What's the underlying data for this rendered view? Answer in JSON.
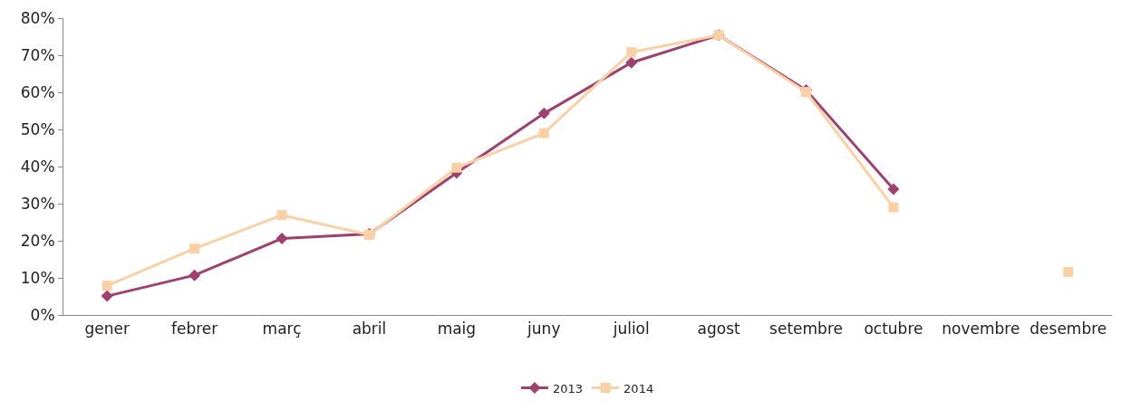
{
  "chart_data": {
    "type": "line",
    "categories": [
      "gener",
      "febrer",
      "març",
      "abril",
      "maig",
      "juny",
      "juliol",
      "agost",
      "setembre",
      "octubre",
      "novembre",
      "desembre"
    ],
    "series": [
      {
        "name": "2013",
        "color": "#a0406f",
        "marker": "diamond",
        "values": [
          5.1,
          10.7,
          20.6,
          21.8,
          38.3,
          54.3,
          68,
          75.4,
          60.6,
          33.9,
          null,
          null
        ]
      },
      {
        "name": "2014",
        "color": "#fbd0a4",
        "marker": "square",
        "values": [
          7.9,
          17.9,
          26.9,
          21.6,
          39.7,
          49,
          70.8,
          75.4,
          60.1,
          29,
          null,
          11.6
        ]
      }
    ],
    "ylim": [
      0,
      80
    ],
    "yticks": [
      {
        "value": 0,
        "label": "0%"
      },
      {
        "value": 10,
        "label": "10%"
      },
      {
        "value": 20,
        "label": "20%"
      },
      {
        "value": 30,
        "label": "30%"
      },
      {
        "value": 40,
        "label": "40%"
      },
      {
        "value": 50,
        "label": "50%"
      },
      {
        "value": 60,
        "label": "60%"
      },
      {
        "value": 70,
        "label": "70%"
      },
      {
        "value": 80,
        "label": "80%"
      }
    ],
    "grid": false,
    "legend": "bottom",
    "line_style": "solid"
  }
}
